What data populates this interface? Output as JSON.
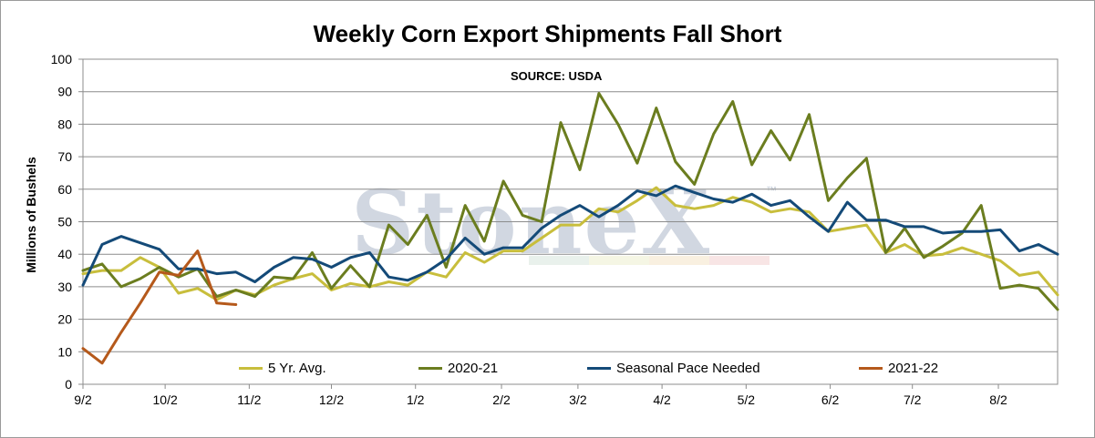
{
  "chart_data": {
    "type": "line",
    "title": "Weekly Corn Export Shipments Fall Short",
    "subtitle": "SOURCE: USDA",
    "ylabel": "Millions  of Bushels",
    "xlabel": "",
    "ylim": [
      0,
      100
    ],
    "yticks": [
      0,
      10,
      20,
      30,
      40,
      50,
      60,
      70,
      80,
      90,
      100
    ],
    "x_tick_labels": [
      "9/2",
      "10/2",
      "11/2",
      "12/2",
      "1/2",
      "2/2",
      "3/2",
      "4/2",
      "5/2",
      "6/2",
      "7/2",
      "8/2"
    ],
    "x_tick_week_index": [
      0,
      4.3,
      8.7,
      13.0,
      17.4,
      21.9,
      25.9,
      30.3,
      34.7,
      39.1,
      43.4,
      47.9
    ],
    "grid": true,
    "legend_position": "bottom",
    "watermark": "StoneX",
    "series": [
      {
        "name": "5 Yr. Avg.",
        "color": "#c8be3c",
        "values": [
          34,
          35,
          35,
          39,
          36,
          28,
          29.5,
          26,
          29,
          27.5,
          30.5,
          32.5,
          34,
          29,
          31,
          30,
          31.5,
          30.5,
          34.5,
          33,
          40.5,
          37.5,
          41,
          41,
          45,
          49,
          49,
          54,
          53,
          56.5,
          60.5,
          55,
          54,
          55,
          57.5,
          56,
          53,
          54,
          53,
          47,
          48,
          49,
          40.5,
          43,
          39.5,
          40,
          42,
          40,
          38,
          33.5,
          34.5,
          27.5
        ]
      },
      {
        "name": "2020-21",
        "color": "#6b7d1f",
        "values": [
          35,
          37,
          30,
          32.5,
          36,
          33,
          35.5,
          27,
          29,
          27,
          33,
          32.5,
          40.5,
          29.5,
          36.5,
          30,
          49,
          43,
          52,
          36,
          55,
          44,
          62.5,
          52,
          50,
          80.5,
          66,
          89.5,
          80,
          68,
          85,
          68.5,
          61.5,
          77,
          87,
          67.5,
          78,
          69,
          83,
          56.5,
          63.5,
          69.5,
          40.5,
          48,
          39,
          42.5,
          46.5,
          55,
          29.5,
          30.5,
          29.5,
          23
        ]
      },
      {
        "name": "Seasonal Pace Needed",
        "color": "#144a78",
        "values": [
          30.5,
          43,
          45.5,
          43.5,
          41.5,
          35.5,
          35.5,
          34,
          34.5,
          31.5,
          36,
          39,
          38.5,
          36,
          39,
          40.5,
          33,
          32,
          34.5,
          38.5,
          45,
          40,
          42,
          42,
          48,
          52,
          55,
          51.5,
          55,
          59.5,
          58,
          61,
          59,
          57,
          56,
          58.5,
          55,
          56.5,
          51.5,
          47,
          56,
          50.5,
          50.5,
          48.5,
          48.5,
          46.5,
          47,
          47,
          47.5,
          41,
          43,
          40
        ]
      },
      {
        "name": "2021-22",
        "color": "#b5591b",
        "values": [
          11,
          6.5,
          16,
          25,
          34.5,
          33.5,
          41,
          25,
          24.5
        ]
      }
    ]
  }
}
